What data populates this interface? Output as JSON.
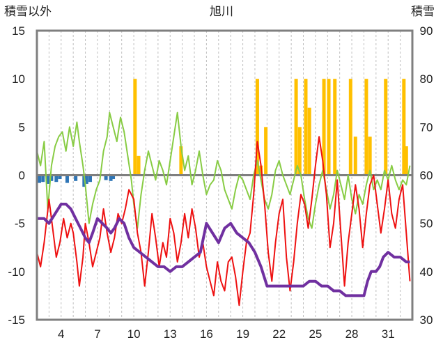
{
  "chart_data": {
    "type": "line",
    "title": "旭川",
    "y_left_label": "積雪以外",
    "y_right_label": "積雪",
    "y_left_ticks": [
      "15",
      "10",
      "5",
      "0",
      "-5",
      "-10",
      "-15"
    ],
    "y_right_ticks": [
      "90",
      "80",
      "70",
      "60",
      "50",
      "40",
      "30"
    ],
    "x_ticks": [
      "4",
      "7",
      "10",
      "13",
      "16",
      "19",
      "22",
      "25",
      "28",
      "31"
    ],
    "ylim_left": [
      -15,
      15
    ],
    "ylim_right": [
      30,
      90
    ],
    "xlim": [
      2,
      33
    ],
    "grid": "vertical dashed, one per day",
    "colors": {
      "temperature": "#ee1111",
      "temp_change": "#88cc44",
      "snow_depth": "#7030a0",
      "snowfall_bars": "#ffc000",
      "neg_bars": "#2e75b6"
    },
    "series": [
      {
        "kind": "line",
        "axis": "left",
        "color_key": "temperature",
        "points": [
          [
            2.0,
            -8.0
          ],
          [
            2.3,
            -9.5
          ],
          [
            2.6,
            -7.0
          ],
          [
            3.0,
            -2.5
          ],
          [
            3.3,
            -5.5
          ],
          [
            3.6,
            -8.5
          ],
          [
            3.9,
            -7.0
          ],
          [
            4.2,
            -4.5
          ],
          [
            4.5,
            -6.5
          ],
          [
            4.8,
            -5.0
          ],
          [
            5.0,
            -6.0
          ],
          [
            5.3,
            -9.0
          ],
          [
            5.5,
            -11.5
          ],
          [
            5.8,
            -8.5
          ],
          [
            6.0,
            -5.0
          ],
          [
            6.3,
            -7.0
          ],
          [
            6.6,
            -9.5
          ],
          [
            6.9,
            -8.0
          ],
          [
            7.2,
            -6.5
          ],
          [
            7.5,
            -3.5
          ],
          [
            7.8,
            -6.0
          ],
          [
            8.1,
            -8.0
          ],
          [
            8.4,
            -6.5
          ],
          [
            8.7,
            -4.0
          ],
          [
            9.0,
            -5.0
          ],
          [
            9.3,
            -3.5
          ],
          [
            9.6,
            -1.5
          ],
          [
            10.0,
            -2.5
          ],
          [
            10.3,
            -6.0
          ],
          [
            10.6,
            -8.0
          ],
          [
            10.9,
            -11.5
          ],
          [
            11.2,
            -8.0
          ],
          [
            11.5,
            -4.0
          ],
          [
            11.8,
            -6.5
          ],
          [
            12.1,
            -9.5
          ],
          [
            12.4,
            -7.0
          ],
          [
            12.7,
            -8.5
          ],
          [
            13.0,
            -4.5
          ],
          [
            13.3,
            -6.0
          ],
          [
            13.6,
            -9.0
          ],
          [
            13.9,
            -7.0
          ],
          [
            14.2,
            -4.0
          ],
          [
            14.5,
            -6.5
          ],
          [
            14.8,
            -3.5
          ],
          [
            15.1,
            -5.5
          ],
          [
            15.4,
            -8.5
          ],
          [
            15.7,
            -7.0
          ],
          [
            16.0,
            -9.5
          ],
          [
            16.3,
            -11.0
          ],
          [
            16.6,
            -12.5
          ],
          [
            16.9,
            -9.0
          ],
          [
            17.2,
            -11.0
          ],
          [
            17.5,
            -12.0
          ],
          [
            17.8,
            -9.0
          ],
          [
            18.1,
            -8.5
          ],
          [
            18.4,
            -10.5
          ],
          [
            18.7,
            -13.5
          ],
          [
            19.0,
            -10.0
          ],
          [
            19.3,
            -7.0
          ],
          [
            19.6,
            -6.0
          ],
          [
            19.9,
            -2.0
          ],
          [
            20.2,
            3.5
          ],
          [
            20.5,
            1.0
          ],
          [
            20.8,
            -3.0
          ],
          [
            21.1,
            -8.0
          ],
          [
            21.4,
            -11.0
          ],
          [
            21.7,
            -7.0
          ],
          [
            22.0,
            -4.0
          ],
          [
            22.3,
            -2.5
          ],
          [
            22.6,
            -8.5
          ],
          [
            22.9,
            -12.0
          ],
          [
            23.2,
            -9.0
          ],
          [
            23.5,
            -5.0
          ],
          [
            23.8,
            -2.0
          ],
          [
            24.1,
            -3.0
          ],
          [
            24.4,
            -5.5
          ],
          [
            24.7,
            -2.5
          ],
          [
            25.0,
            1.0
          ],
          [
            25.3,
            4.0
          ],
          [
            25.6,
            1.5
          ],
          [
            25.9,
            -2.0
          ],
          [
            26.2,
            -7.5
          ],
          [
            26.5,
            -5.0
          ],
          [
            26.8,
            -0.5
          ],
          [
            27.1,
            -6.0
          ],
          [
            27.4,
            -11.5
          ],
          [
            27.7,
            -7.0
          ],
          [
            28.0,
            -4.0
          ],
          [
            28.3,
            -1.0
          ],
          [
            28.6,
            -3.5
          ],
          [
            28.9,
            -7.5
          ],
          [
            29.2,
            -4.0
          ],
          [
            29.5,
            -1.0
          ],
          [
            29.8,
            0.0
          ],
          [
            30.1,
            -3.0
          ],
          [
            30.4,
            -6.0
          ],
          [
            30.7,
            -3.5
          ],
          [
            31.0,
            -0.5
          ],
          [
            31.3,
            -4.0
          ],
          [
            31.6,
            -5.5
          ],
          [
            31.9,
            -2.5
          ],
          [
            32.2,
            -1.0
          ],
          [
            32.5,
            -6.0
          ],
          [
            32.8,
            -11.0
          ]
        ]
      },
      {
        "kind": "line",
        "axis": "left",
        "color_key": "temp_change",
        "points": [
          [
            2.0,
            2.5
          ],
          [
            2.3,
            1.0
          ],
          [
            2.6,
            3.5
          ],
          [
            2.9,
            -3.5
          ],
          [
            3.2,
            1.0
          ],
          [
            3.5,
            3.0
          ],
          [
            3.8,
            4.0
          ],
          [
            4.1,
            4.5
          ],
          [
            4.4,
            2.5
          ],
          [
            4.7,
            5.0
          ],
          [
            5.0,
            3.0
          ],
          [
            5.3,
            5.5
          ],
          [
            5.5,
            3.5
          ],
          [
            5.8,
            1.0
          ],
          [
            6.0,
            -1.0
          ],
          [
            6.3,
            -5.0
          ],
          [
            6.6,
            -3.0
          ],
          [
            6.9,
            -1.5
          ],
          [
            7.2,
            -0.5
          ],
          [
            7.5,
            2.5
          ],
          [
            7.8,
            4.0
          ],
          [
            8.0,
            6.5
          ],
          [
            8.3,
            5.0
          ],
          [
            8.6,
            3.5
          ],
          [
            8.9,
            6.0
          ],
          [
            9.2,
            4.5
          ],
          [
            9.5,
            2.0
          ],
          [
            9.8,
            -0.5
          ],
          [
            10.0,
            -3.0
          ],
          [
            10.3,
            -5.5
          ],
          [
            10.6,
            -2.0
          ],
          [
            10.9,
            0.5
          ],
          [
            11.2,
            2.5
          ],
          [
            11.5,
            1.0
          ],
          [
            11.8,
            -0.5
          ],
          [
            12.1,
            1.5
          ],
          [
            12.4,
            0.5
          ],
          [
            12.7,
            -1.0
          ],
          [
            13.0,
            1.5
          ],
          [
            13.3,
            4.0
          ],
          [
            13.6,
            6.5
          ],
          [
            13.9,
            3.0
          ],
          [
            14.2,
            0.5
          ],
          [
            14.5,
            2.0
          ],
          [
            14.8,
            -1.0
          ],
          [
            15.1,
            0.5
          ],
          [
            15.4,
            2.5
          ],
          [
            15.7,
            0.0
          ],
          [
            16.0,
            -2.0
          ],
          [
            16.3,
            -1.0
          ],
          [
            16.6,
            -0.5
          ],
          [
            16.9,
            1.5
          ],
          [
            17.2,
            0.5
          ],
          [
            17.5,
            -1.5
          ],
          [
            17.8,
            -2.5
          ],
          [
            18.1,
            -3.5
          ],
          [
            18.4,
            -1.5
          ],
          [
            18.7,
            0.0
          ],
          [
            19.0,
            -0.5
          ],
          [
            19.3,
            -1.5
          ],
          [
            19.6,
            -2.5
          ],
          [
            19.9,
            0.0
          ],
          [
            20.2,
            1.5
          ],
          [
            20.5,
            -0.5
          ],
          [
            20.8,
            -2.5
          ],
          [
            21.1,
            -3.5
          ],
          [
            21.4,
            -2.0
          ],
          [
            21.7,
            0.5
          ],
          [
            22.0,
            1.5
          ],
          [
            22.3,
            0.0
          ],
          [
            22.6,
            -1.0
          ],
          [
            22.9,
            -2.0
          ],
          [
            23.2,
            -0.5
          ],
          [
            23.5,
            1.0
          ],
          [
            23.8,
            0.0
          ],
          [
            24.1,
            -2.5
          ],
          [
            24.4,
            -4.5
          ],
          [
            24.7,
            -5.5
          ],
          [
            25.0,
            -3.0
          ],
          [
            25.3,
            -1.0
          ],
          [
            25.6,
            0.5
          ],
          [
            25.9,
            -1.5
          ],
          [
            26.2,
            -3.5
          ],
          [
            26.5,
            -2.0
          ],
          [
            26.8,
            0.5
          ],
          [
            27.1,
            -1.0
          ],
          [
            27.4,
            -2.5
          ],
          [
            27.7,
            0.0
          ],
          [
            28.0,
            -2.5
          ],
          [
            28.3,
            -4.0
          ],
          [
            28.6,
            -2.0
          ],
          [
            28.9,
            -3.0
          ],
          [
            29.2,
            -1.0
          ],
          [
            29.5,
            0.5
          ],
          [
            29.8,
            -1.5
          ],
          [
            30.1,
            -0.5
          ],
          [
            30.4,
            -1.5
          ],
          [
            30.7,
            0.5
          ],
          [
            31.0,
            -0.5
          ],
          [
            31.3,
            1.0
          ],
          [
            31.6,
            -0.5
          ],
          [
            31.9,
            -1.5
          ],
          [
            32.2,
            -0.5
          ],
          [
            32.5,
            -1.0
          ],
          [
            32.8,
            1.0
          ]
        ]
      },
      {
        "kind": "line",
        "axis": "right",
        "color_key": "snow_depth",
        "points": [
          [
            2.0,
            51
          ],
          [
            2.6,
            51
          ],
          [
            3.0,
            50
          ],
          [
            3.5,
            52
          ],
          [
            4.0,
            54
          ],
          [
            4.4,
            54
          ],
          [
            4.8,
            53
          ],
          [
            5.2,
            51
          ],
          [
            5.6,
            49
          ],
          [
            6.0,
            47
          ],
          [
            6.3,
            46
          ],
          [
            6.6,
            48
          ],
          [
            7.0,
            51
          ],
          [
            7.4,
            50
          ],
          [
            7.8,
            49
          ],
          [
            8.1,
            48
          ],
          [
            8.4,
            49
          ],
          [
            8.8,
            51
          ],
          [
            9.2,
            50
          ],
          [
            9.6,
            47
          ],
          [
            10.0,
            45
          ],
          [
            10.5,
            44
          ],
          [
            11.0,
            43
          ],
          [
            11.5,
            42
          ],
          [
            12.0,
            41
          ],
          [
            12.5,
            41
          ],
          [
            13.0,
            40
          ],
          [
            13.5,
            41
          ],
          [
            14.0,
            41
          ],
          [
            14.5,
            42
          ],
          [
            15.0,
            43
          ],
          [
            15.5,
            44
          ],
          [
            16.0,
            50
          ],
          [
            16.5,
            48
          ],
          [
            17.0,
            46
          ],
          [
            17.5,
            49
          ],
          [
            18.0,
            50
          ],
          [
            18.5,
            48
          ],
          [
            19.0,
            47
          ],
          [
            19.5,
            46
          ],
          [
            20.0,
            44
          ],
          [
            20.5,
            41
          ],
          [
            21.0,
            37
          ],
          [
            22.0,
            37
          ],
          [
            23.0,
            37
          ],
          [
            24.0,
            37
          ],
          [
            24.5,
            38
          ],
          [
            25.0,
            38
          ],
          [
            25.5,
            37
          ],
          [
            26.0,
            37
          ],
          [
            26.5,
            36
          ],
          [
            27.0,
            36
          ],
          [
            27.5,
            35
          ],
          [
            28.0,
            35
          ],
          [
            28.5,
            35
          ],
          [
            29.0,
            35
          ],
          [
            29.3,
            38
          ],
          [
            29.6,
            40
          ],
          [
            30.0,
            40
          ],
          [
            30.3,
            41
          ],
          [
            30.6,
            43
          ],
          [
            31.0,
            44
          ],
          [
            31.5,
            43
          ],
          [
            32.0,
            43
          ],
          [
            32.5,
            42
          ],
          [
            32.8,
            42
          ]
        ]
      }
    ],
    "bars": {
      "color_key": "snowfall_bars",
      "axis": "left",
      "base": 0,
      "x": [
        10.1,
        10.4,
        13.9,
        20.2,
        20.5,
        20.9,
        23.4,
        23.7,
        24.2,
        24.5,
        25.7,
        26.1,
        26.6,
        27.9,
        28.3,
        29.2,
        29.5,
        30.8,
        32.3,
        32.5
      ],
      "values": [
        10,
        2,
        3,
        10,
        1,
        5,
        10,
        5,
        10,
        7,
        10,
        10,
        10,
        10,
        4,
        10,
        4,
        10,
        10,
        3
      ]
    },
    "neg_bars": {
      "color_key": "neg_bars",
      "axis": "left",
      "base": 0,
      "x": [
        2.2,
        2.5,
        2.9,
        3.2,
        3.6,
        3.9,
        4.5,
        5.2,
        5.9,
        6.1,
        6.4,
        7.7,
        8.1,
        8.3
      ],
      "values": [
        -0.8,
        -0.7,
        -0.9,
        -0.6,
        -0.7,
        -0.4,
        -0.8,
        -0.6,
        -1.2,
        -0.9,
        -0.7,
        -0.5,
        -0.6,
        -0.4
      ]
    }
  }
}
